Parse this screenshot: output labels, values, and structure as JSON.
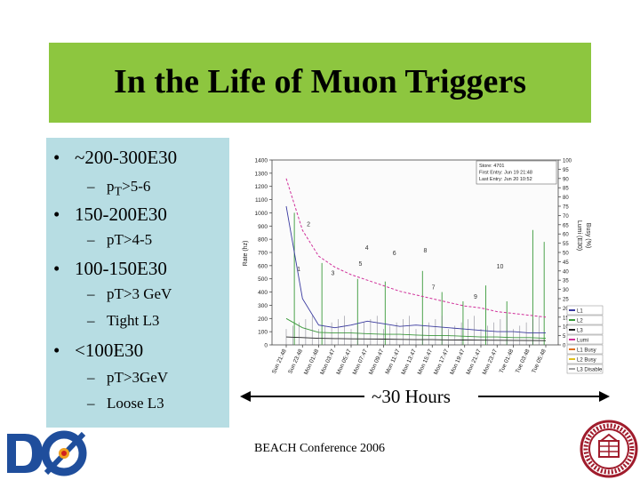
{
  "slide": {
    "title": "In the Life of Muon Triggers",
    "bullets": [
      {
        "text": "~200-300E30",
        "subs": [
          {
            "html": "p<sub>T</sub>>5-6"
          }
        ]
      },
      {
        "text": "150-200E30",
        "subs": [
          {
            "html": "pT>4-5"
          }
        ]
      },
      {
        "text": "100-150E30",
        "subs": [
          {
            "html": "pT>3 GeV"
          },
          {
            "html": "Tight L3"
          }
        ]
      },
      {
        "text": "<100E30",
        "subs": [
          {
            "html": "pT>3GeV"
          },
          {
            "html": "Loose L3"
          }
        ]
      }
    ],
    "time_span_label": "~30 Hours",
    "footer": "BEACH Conference 2006"
  },
  "chart_data": {
    "type": "line",
    "ylabel": "Rate (hz)",
    "ylabel_right": "Lumi (E30)",
    "ylabel_right2": "Busy (%)",
    "y_ticks": [
      0,
      100,
      200,
      300,
      400,
      500,
      600,
      700,
      800,
      900,
      1000,
      1100,
      1200,
      1300,
      1400
    ],
    "y_ticks_right": [
      0,
      5,
      10,
      15,
      20,
      25,
      30,
      35,
      40,
      45,
      50,
      55,
      60,
      65,
      70,
      75,
      80,
      85,
      90,
      95,
      100
    ],
    "x_ticks": [
      "Sun 21:48",
      "Sun 23:48",
      "Mon 01:48",
      "Mon 03:47",
      "Mon 05:47",
      "Mon 07:47",
      "Mon 09:47",
      "Mon 11:47",
      "Mon 13:47",
      "Mon 15:47",
      "Mon 17:47",
      "Mon 19:47",
      "Mon 21:47",
      "Mon 23:47",
      "Tue 01:48",
      "Tue 03:48",
      "Tue 05:48"
    ],
    "info_box": [
      "Store: 4701",
      "First Entry: Jun 19 21:48",
      "Last Entry: Jun 20 10:52"
    ],
    "annotations": [
      "1",
      "2",
      "3",
      "4",
      "5",
      "6",
      "7",
      "8",
      "9",
      "10"
    ],
    "legend": [
      {
        "name": "L1",
        "color": "#3a3aa0"
      },
      {
        "name": "L2",
        "color": "#3a9a3a"
      },
      {
        "name": "L3",
        "color": "#202020"
      },
      {
        "name": "Lumi",
        "color": "#d0309a"
      },
      {
        "name": "L1 Busy",
        "color": "#e07020"
      },
      {
        "name": "L2 Busy",
        "color": "#e0c020"
      },
      {
        "name": "L3 Disable",
        "color": "#a0a0a0"
      }
    ],
    "series": [
      {
        "name": "Lumi",
        "values": [
          90,
          62,
          48,
          42,
          38,
          35,
          32,
          29,
          27,
          25,
          23,
          21,
          20,
          18,
          17,
          16,
          15
        ]
      },
      {
        "name": "L1",
        "values": [
          1050,
          350,
          150,
          130,
          150,
          180,
          160,
          140,
          150,
          140,
          130,
          120,
          110,
          100,
          100,
          90,
          90
        ]
      },
      {
        "name": "L2",
        "values": [
          200,
          130,
          95,
          90,
          90,
          85,
          80,
          80,
          75,
          70,
          70,
          65,
          60,
          60,
          55,
          55,
          50
        ]
      },
      {
        "name": "L3",
        "values": [
          60,
          55,
          50,
          48,
          46,
          45,
          44,
          42,
          40,
          40,
          38,
          37,
          36,
          35,
          34,
          33,
          32
        ]
      }
    ],
    "ylim": [
      0,
      1400
    ]
  },
  "colors": {
    "title_bg": "#8dc63f",
    "panel_bg": "#b7dde3",
    "arrow": "#000000"
  }
}
